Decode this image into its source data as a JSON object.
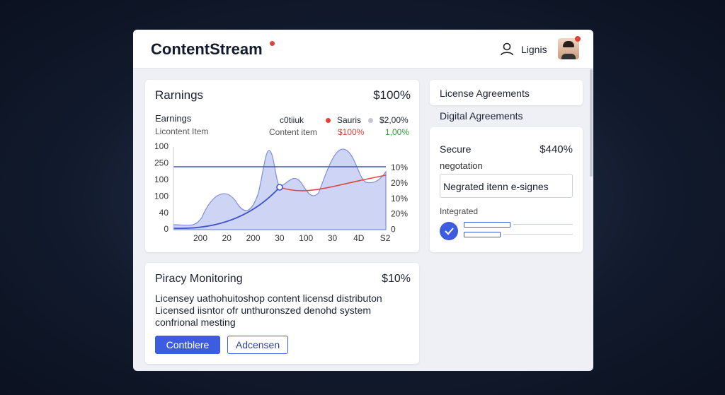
{
  "header": {
    "brand": "ContentStream",
    "user_label": "Lignis"
  },
  "earnings": {
    "title": "Rarnings",
    "total": "$100%",
    "subtitle": "Earnings",
    "caption": "Licontent Item",
    "legend": [
      {
        "name": "c0tiiuk",
        "value": "Content item"
      },
      {
        "name": "Sauris",
        "value": "$100%"
      },
      {
        "name": "$2,00%",
        "value": "1,00%"
      }
    ],
    "y_labels": [
      "100",
      "250",
      "100",
      "100",
      "40",
      "0"
    ],
    "y2_labels": [
      "10%",
      "20%",
      "10%",
      "20%",
      "0"
    ],
    "x_labels": [
      "200",
      "20",
      "200",
      "30",
      "100",
      "30",
      "4D",
      "S2"
    ]
  },
  "piracy": {
    "title": "Piracy Monitoring",
    "value": "$10%",
    "lines": [
      "Licensey uathohuitoshop content licensd distributon",
      "Licensed iisntor ofr unthuronszed denohd system",
      "confrional mesting"
    ],
    "buttons": [
      "Contblere",
      "Adcensen"
    ]
  },
  "sidebar": {
    "license_title": "License Agreements",
    "digital_title": "Digital Agreements",
    "secure_title": "Secure",
    "secure_value": "$440%",
    "negotiation": "negotation",
    "input": "Negrated itenn e-signes",
    "integrated": "Integrated"
  }
}
